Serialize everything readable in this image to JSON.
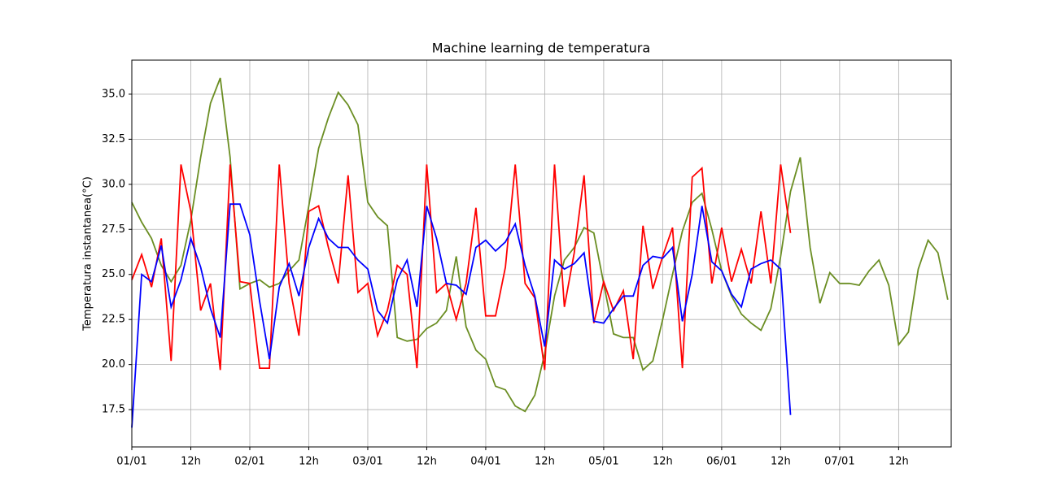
{
  "chart_data": {
    "type": "line",
    "title": "Machine learning de temperatura",
    "y_label": "Temperatura instantanea(°C)",
    "x": [
      0,
      2,
      4,
      6,
      8,
      10,
      12,
      14,
      16,
      18,
      20,
      22,
      24,
      26,
      28,
      30,
      32,
      34,
      36,
      38,
      40,
      42,
      44,
      46,
      48,
      50,
      52,
      54,
      56,
      58,
      60,
      62,
      64,
      66,
      68,
      70,
      72,
      74,
      76,
      78,
      80,
      82,
      84,
      86,
      88,
      90,
      92,
      94,
      96,
      98,
      100,
      102,
      104,
      106,
      108,
      110,
      112,
      114,
      116,
      118,
      120,
      122,
      124,
      126,
      128,
      130,
      132,
      134,
      136,
      138,
      140,
      142,
      144,
      146,
      148,
      150,
      152,
      154,
      156,
      158,
      160,
      162,
      164,
      166
    ],
    "series": [
      {
        "color": "#6b8e23",
        "values": [
          29.0,
          27.9,
          27.0,
          25.5,
          24.6,
          25.5,
          28.0,
          31.5,
          34.5,
          35.9,
          31.5,
          24.2,
          24.5,
          24.7,
          24.3,
          24.5,
          25.2,
          25.8,
          28.8,
          32.0,
          33.7,
          35.1,
          34.4,
          33.3,
          29.0,
          28.2,
          27.7,
          21.5,
          21.3,
          21.4,
          22.0,
          22.3,
          23.0,
          26.0,
          22.1,
          20.8,
          20.3,
          18.8,
          18.6,
          17.7,
          17.4,
          18.3,
          20.6,
          23.8,
          25.8,
          26.5,
          27.6,
          27.3,
          24.5,
          21.7,
          21.5,
          21.5,
          19.7,
          20.2,
          22.5,
          25.0,
          27.4,
          29.0,
          29.5,
          27.5,
          25.2,
          23.8,
          22.8,
          22.3,
          21.9,
          23.1,
          26.0,
          29.6,
          31.5,
          26.5,
          23.4,
          25.1,
          24.5,
          24.5,
          24.4,
          25.2,
          25.8,
          24.4,
          21.1,
          21.8,
          25.3,
          26.9,
          26.2,
          23.6
        ]
      },
      {
        "color": "#ff0000",
        "values": [
          24.7,
          26.1,
          24.3,
          27.0,
          20.2,
          31.1,
          28.5,
          23.0,
          24.5,
          19.7,
          31.1,
          24.6,
          24.5,
          19.8,
          19.8,
          31.1,
          24.5,
          21.6,
          28.5,
          28.8,
          26.5,
          24.5,
          30.5,
          24.0,
          24.5,
          21.6,
          23.0,
          25.5,
          25.0,
          19.8,
          31.1,
          24.0,
          24.5,
          22.5,
          24.5,
          28.7,
          22.7,
          22.7,
          25.4,
          31.1,
          24.5,
          23.7,
          19.7,
          31.1,
          23.2,
          26.2,
          30.5,
          22.3,
          24.6,
          23.0,
          24.1,
          20.3,
          27.7,
          24.2,
          26.0,
          27.6,
          19.8,
          30.4,
          30.9,
          24.5,
          27.6,
          24.6,
          26.4,
          24.5,
          28.5,
          24.5,
          31.1,
          27.3,
          null,
          null,
          null,
          null,
          null,
          null,
          null,
          null,
          null,
          null,
          null,
          null,
          null,
          null,
          null,
          null
        ]
      },
      {
        "color": "#0000ff",
        "values": [
          16.5,
          25.0,
          24.6,
          26.6,
          23.2,
          24.7,
          27.0,
          25.4,
          23.1,
          21.5,
          28.9,
          28.9,
          27.2,
          23.5,
          20.3,
          24.3,
          25.6,
          23.8,
          26.5,
          28.1,
          27.0,
          26.5,
          26.5,
          25.8,
          25.3,
          23.0,
          22.3,
          24.7,
          25.8,
          23.2,
          28.8,
          27.0,
          24.5,
          24.4,
          23.9,
          26.5,
          26.9,
          26.3,
          26.8,
          27.8,
          25.5,
          23.8,
          21.0,
          25.8,
          25.3,
          25.6,
          26.2,
          22.4,
          22.3,
          23.1,
          23.8,
          23.8,
          25.5,
          26.0,
          25.9,
          26.5,
          22.4,
          25.0,
          28.8,
          25.7,
          25.2,
          23.9,
          23.2,
          25.3,
          25.6,
          25.8,
          25.3,
          17.2,
          null,
          null,
          null,
          null,
          null,
          null,
          null,
          null,
          null,
          null,
          null,
          null,
          null,
          null,
          null,
          null
        ]
      }
    ],
    "xlim": [
      0,
      166.7
    ],
    "xticks": [
      {
        "value": 0,
        "label": "01/01"
      },
      {
        "value": 12,
        "label": "12h"
      },
      {
        "value": 24,
        "label": "02/01"
      },
      {
        "value": 36,
        "label": "12h"
      },
      {
        "value": 48,
        "label": "03/01"
      },
      {
        "value": 60,
        "label": "12h"
      },
      {
        "value": 72,
        "label": "04/01"
      },
      {
        "value": 84,
        "label": "12h"
      },
      {
        "value": 96,
        "label": "05/01"
      },
      {
        "value": 108,
        "label": "12h"
      },
      {
        "value": 120,
        "label": "06/01"
      },
      {
        "value": 132,
        "label": "12h"
      },
      {
        "value": 144,
        "label": "07/01"
      },
      {
        "value": 156,
        "label": "12h"
      }
    ],
    "ylim": [
      15.43,
      36.89
    ],
    "yticks": [
      17.5,
      {
        "value": 20,
        "label": "20.0"
      },
      22.5,
      {
        "value": 25,
        "label": "25.0"
      },
      27.5,
      {
        "value": 30,
        "label": "30.0"
      },
      32.5,
      {
        "value": 35,
        "label": "35.0"
      }
    ],
    "grid": true
  }
}
